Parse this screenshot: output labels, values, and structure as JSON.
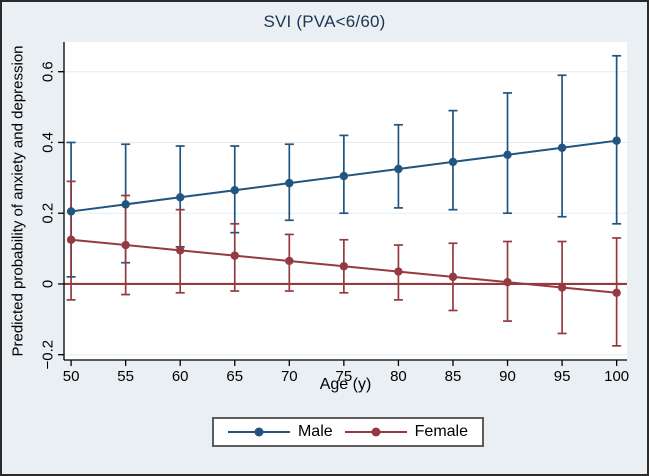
{
  "figure": {
    "title": "SVI (PVA<6/60)"
  },
  "colors": {
    "background": "#e9eff3",
    "plot_background": "#ffffff",
    "grid": "#e2edf3",
    "axis": "#000000",
    "title": "#1f3553",
    "refline": "#943a40",
    "legend_border": "#5c5c5c"
  },
  "chart_data": {
    "type": "line",
    "title": "SVI (PVA<6/60)",
    "xlabel": "Age (y)",
    "ylabel": "Predicted probability of anxiety and depression",
    "x": [
      50,
      55,
      60,
      65,
      70,
      75,
      80,
      85,
      90,
      95,
      100
    ],
    "xticks": [
      50,
      55,
      60,
      65,
      70,
      75,
      80,
      85,
      90,
      95,
      100
    ],
    "yticks": [
      -0.2,
      0,
      0.2,
      0.4,
      0.6
    ],
    "ytick_labels": [
      "−0.2",
      "0",
      "0.2",
      "0.4",
      "0.6"
    ],
    "xlim": [
      49.35,
      100.95
    ],
    "ylim": [
      -0.215,
      0.684
    ],
    "grid": "horizontal",
    "legend_position": "bottom-center",
    "refline": {
      "y": 0,
      "color": "#943a40"
    },
    "series": [
      {
        "name": "Male",
        "color": "#21557f",
        "marker": "circle",
        "values": [
          0.205,
          0.225,
          0.245,
          0.265,
          0.285,
          0.305,
          0.325,
          0.345,
          0.365,
          0.385,
          0.405
        ],
        "ci_upper": [
          0.4,
          0.395,
          0.39,
          0.39,
          0.395,
          0.42,
          0.45,
          0.49,
          0.54,
          0.59,
          0.645
        ],
        "ci_lower": [
          0.02,
          0.06,
          0.105,
          0.145,
          0.18,
          0.2,
          0.215,
          0.21,
          0.2,
          0.19,
          0.17
        ]
      },
      {
        "name": "Female",
        "color": "#943a40",
        "marker": "circle",
        "values": [
          0.125,
          0.11,
          0.095,
          0.08,
          0.065,
          0.05,
          0.035,
          0.02,
          0.005,
          -0.01,
          -0.025
        ],
        "ci_upper": [
          0.29,
          0.25,
          0.21,
          0.17,
          0.14,
          0.125,
          0.11,
          0.115,
          0.12,
          0.12,
          0.13
        ],
        "ci_lower": [
          -0.045,
          -0.03,
          -0.025,
          -0.02,
          -0.02,
          -0.025,
          -0.045,
          -0.075,
          -0.105,
          -0.14,
          -0.175
        ]
      }
    ]
  }
}
